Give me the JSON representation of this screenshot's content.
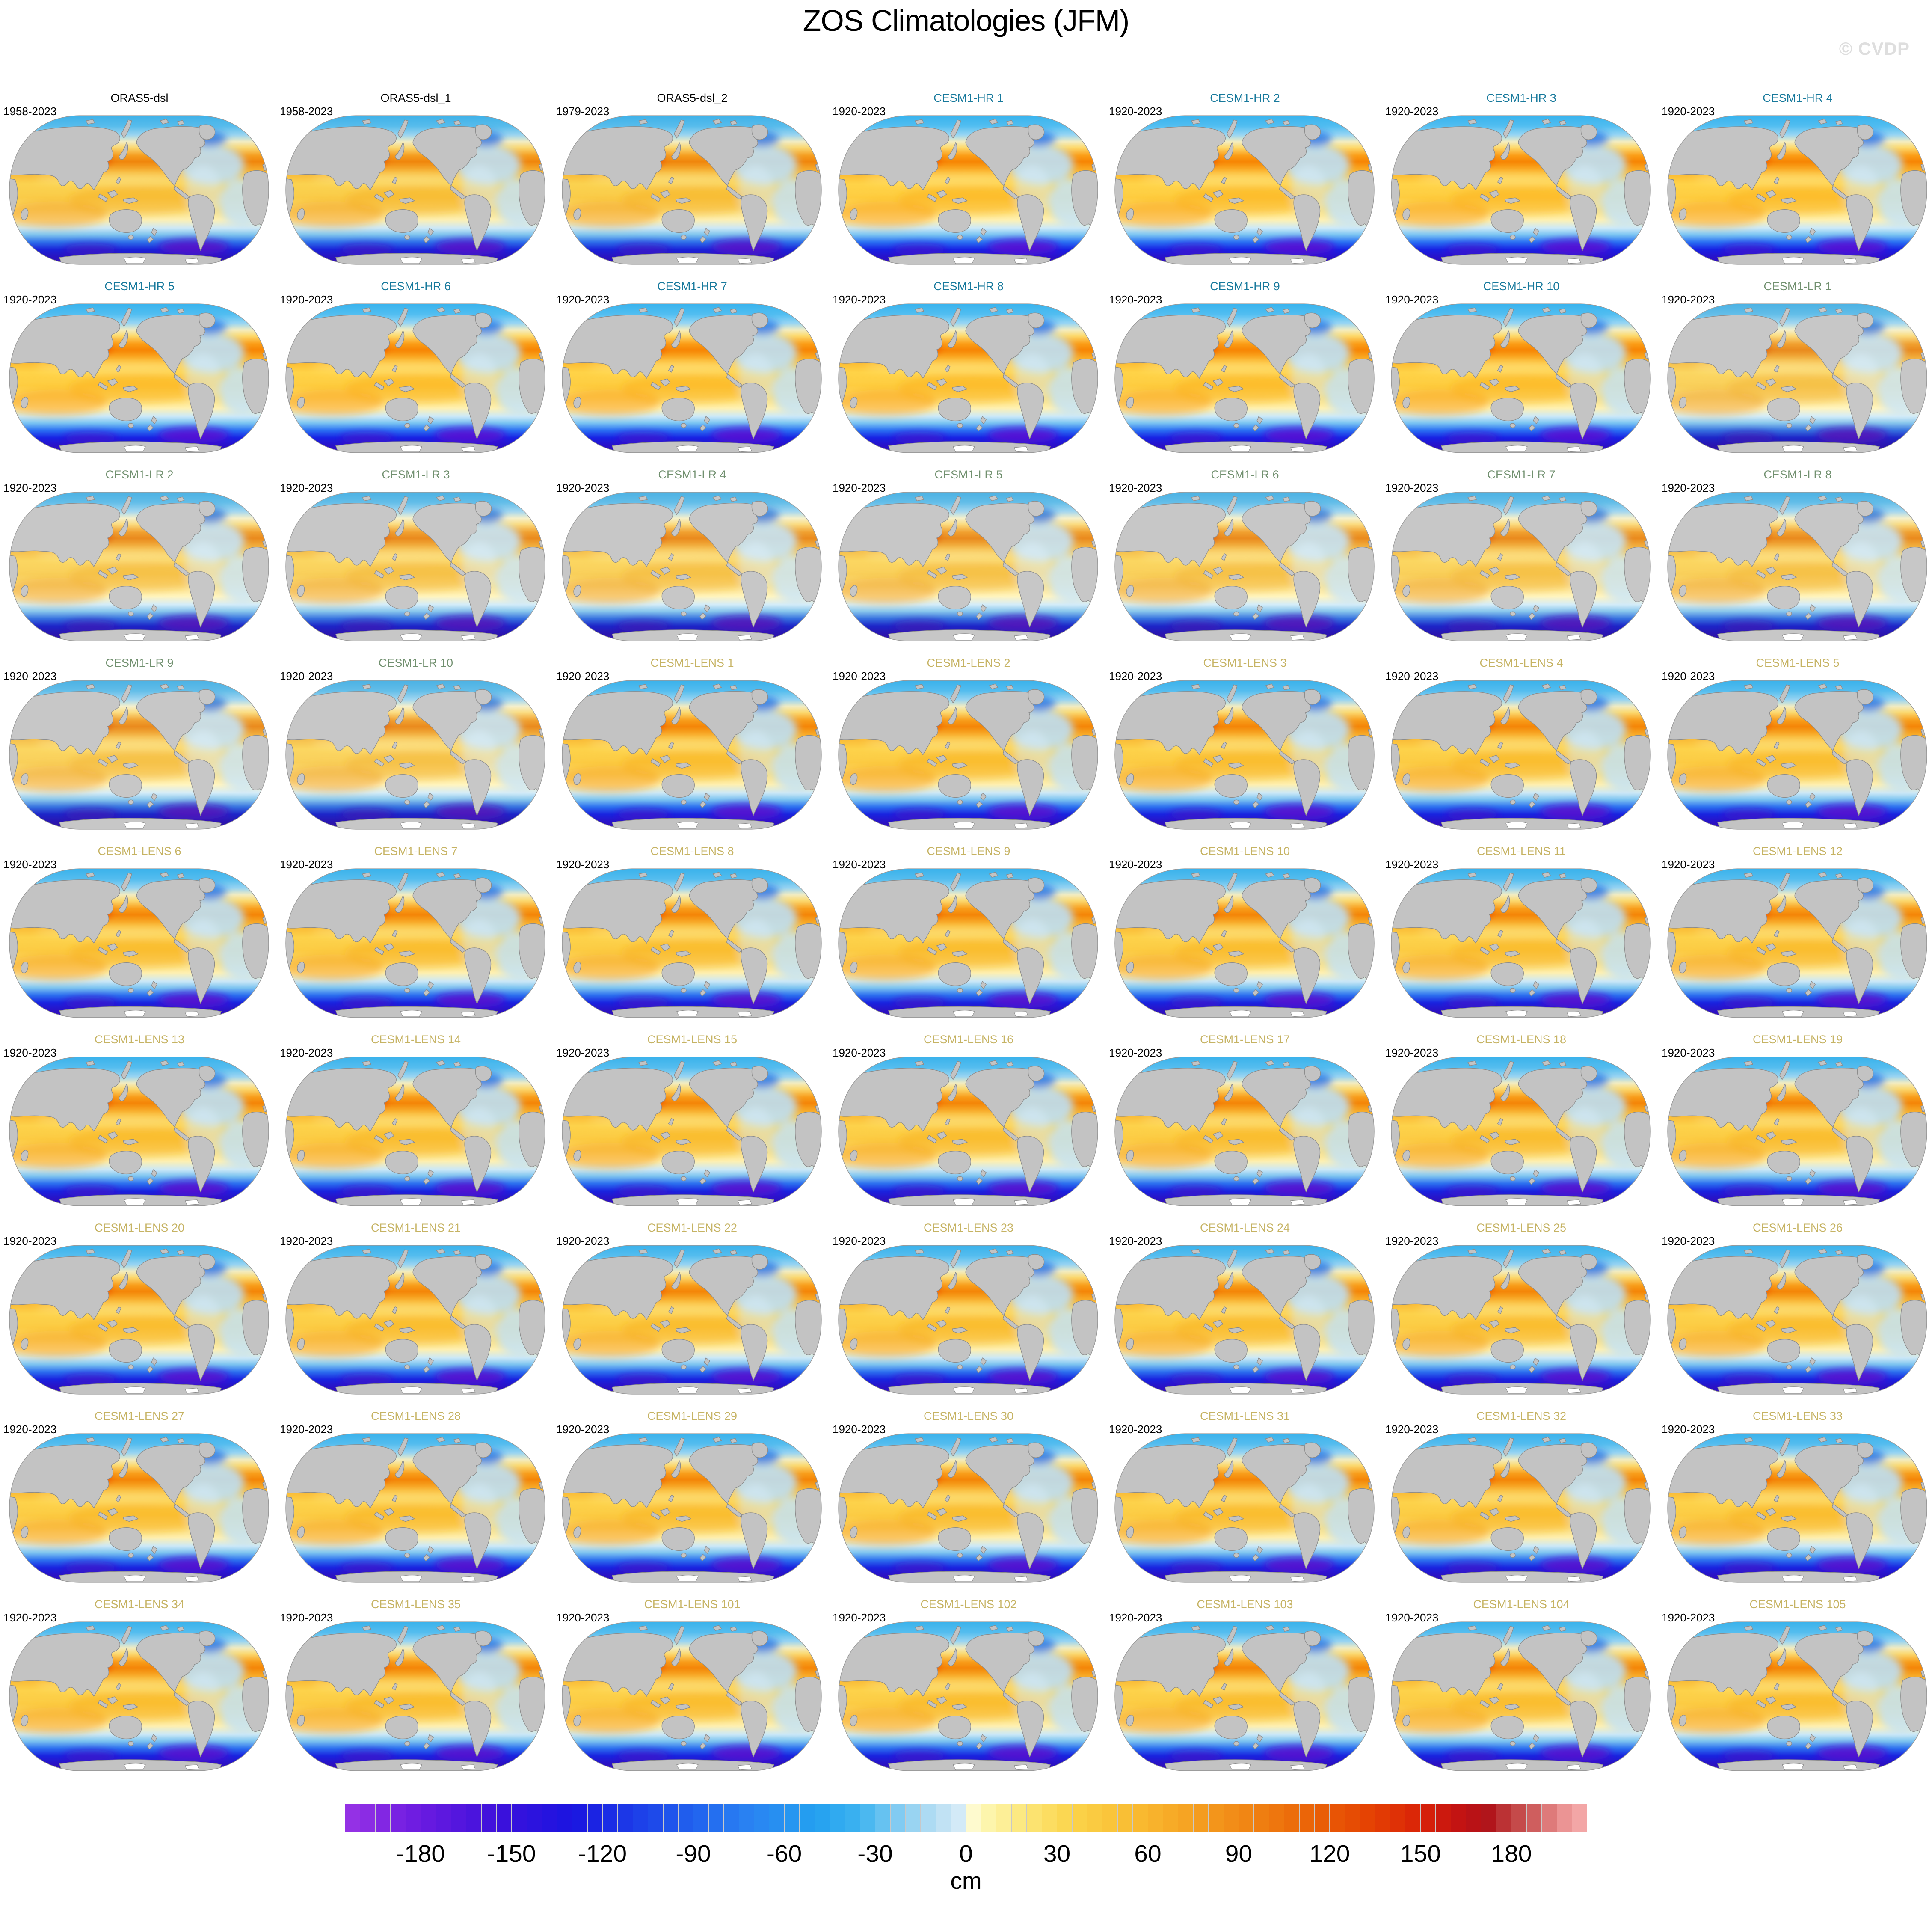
{
  "title": "ZOS Climatologies (JFM)",
  "watermark": "© CVDP",
  "group_title_colors": {
    "obs": "#000000",
    "hr": "#17799C",
    "lr": "#71906F",
    "lens": "#C6B363"
  },
  "map_colors": {
    "land": "#C3C3C3",
    "coast": "#8C8C8C",
    "outline": "#999999"
  },
  "chart_data": {
    "type": "heatmap",
    "title": "ZOS Climatologies (JFM)",
    "variable": "ZOS",
    "season": "JFM",
    "unit": "cm",
    "grid": {
      "rows": 9,
      "cols": 7
    },
    "projection": "global ellipse, Pacific-centered",
    "colorbar": {
      "unit": "cm",
      "range": [
        -205,
        205
      ],
      "ticks": [
        -180,
        -150,
        -120,
        -90,
        -60,
        -30,
        0,
        30,
        60,
        90,
        120,
        150,
        180
      ],
      "tick_labels": [
        "-180",
        "-150",
        "-120",
        "-90",
        "-60",
        "-30",
        "0",
        "30",
        "60",
        "90",
        "120",
        "150",
        "180"
      ],
      "cells": 82,
      "stops": [
        [
          -205,
          "#9933E6"
        ],
        [
          -180,
          "#6A1BE0"
        ],
        [
          -155,
          "#3D11DC"
        ],
        [
          -130,
          "#1A14E0"
        ],
        [
          -110,
          "#1C3CE8"
        ],
        [
          -90,
          "#2162EE"
        ],
        [
          -70,
          "#2A85F2"
        ],
        [
          -50,
          "#23A0F0"
        ],
        [
          -35,
          "#3DB3F0"
        ],
        [
          -20,
          "#8FD0F2"
        ],
        [
          -8,
          "#BFE1F4"
        ],
        [
          -1,
          "#D9EDF8"
        ],
        [
          1,
          "#FEFBD8"
        ],
        [
          8,
          "#FDF4A9"
        ],
        [
          20,
          "#FCE678"
        ],
        [
          35,
          "#FBD44A"
        ],
        [
          55,
          "#F9BC32"
        ],
        [
          75,
          "#F5A021"
        ],
        [
          95,
          "#F08212"
        ],
        [
          115,
          "#EA6106"
        ],
        [
          135,
          "#E43F03"
        ],
        [
          150,
          "#D92208"
        ],
        [
          162,
          "#C41312"
        ],
        [
          172,
          "#B01219"
        ],
        [
          180,
          "#C04040"
        ],
        [
          188,
          "#D06060"
        ],
        [
          196,
          "#E88F8F"
        ],
        [
          205,
          "#F7AFAF"
        ]
      ]
    },
    "panels": [
      {
        "label": "ORAS5-dsl",
        "years": "1958-2023",
        "group": "obs"
      },
      {
        "label": "ORAS5-dsl_1",
        "years": "1958-2023",
        "group": "obs"
      },
      {
        "label": "ORAS5-dsl_2",
        "years": "1979-2023",
        "group": "obs"
      },
      {
        "label": "CESM1-HR 1",
        "years": "1920-2023",
        "group": "hr"
      },
      {
        "label": "CESM1-HR 2",
        "years": "1920-2023",
        "group": "hr"
      },
      {
        "label": "CESM1-HR 3",
        "years": "1920-2023",
        "group": "hr"
      },
      {
        "label": "CESM1-HR 4",
        "years": "1920-2023",
        "group": "hr"
      },
      {
        "label": "CESM1-HR 5",
        "years": "1920-2023",
        "group": "hr"
      },
      {
        "label": "CESM1-HR 6",
        "years": "1920-2023",
        "group": "hr"
      },
      {
        "label": "CESM1-HR 7",
        "years": "1920-2023",
        "group": "hr"
      },
      {
        "label": "CESM1-HR 8",
        "years": "1920-2023",
        "group": "hr"
      },
      {
        "label": "CESM1-HR 9",
        "years": "1920-2023",
        "group": "hr"
      },
      {
        "label": "CESM1-HR 10",
        "years": "1920-2023",
        "group": "hr"
      },
      {
        "label": "CESM1-LR 1",
        "years": "1920-2023",
        "group": "lr"
      },
      {
        "label": "CESM1-LR 2",
        "years": "1920-2023",
        "group": "lr"
      },
      {
        "label": "CESM1-LR 3",
        "years": "1920-2023",
        "group": "lr"
      },
      {
        "label": "CESM1-LR 4",
        "years": "1920-2023",
        "group": "lr"
      },
      {
        "label": "CESM1-LR 5",
        "years": "1920-2023",
        "group": "lr"
      },
      {
        "label": "CESM1-LR 6",
        "years": "1920-2023",
        "group": "lr"
      },
      {
        "label": "CESM1-LR 7",
        "years": "1920-2023",
        "group": "lr"
      },
      {
        "label": "CESM1-LR 8",
        "years": "1920-2023",
        "group": "lr"
      },
      {
        "label": "CESM1-LR 9",
        "years": "1920-2023",
        "group": "lr"
      },
      {
        "label": "CESM1-LR 10",
        "years": "1920-2023",
        "group": "lr"
      },
      {
        "label": "CESM1-LENS 1",
        "years": "1920-2023",
        "group": "lens"
      },
      {
        "label": "CESM1-LENS 2",
        "years": "1920-2023",
        "group": "lens"
      },
      {
        "label": "CESM1-LENS 3",
        "years": "1920-2023",
        "group": "lens"
      },
      {
        "label": "CESM1-LENS 4",
        "years": "1920-2023",
        "group": "lens"
      },
      {
        "label": "CESM1-LENS 5",
        "years": "1920-2023",
        "group": "lens"
      },
      {
        "label": "CESM1-LENS 6",
        "years": "1920-2023",
        "group": "lens"
      },
      {
        "label": "CESM1-LENS 7",
        "years": "1920-2023",
        "group": "lens"
      },
      {
        "label": "CESM1-LENS 8",
        "years": "1920-2023",
        "group": "lens"
      },
      {
        "label": "CESM1-LENS 9",
        "years": "1920-2023",
        "group": "lens"
      },
      {
        "label": "CESM1-LENS 10",
        "years": "1920-2023",
        "group": "lens"
      },
      {
        "label": "CESM1-LENS 11",
        "years": "1920-2023",
        "group": "lens"
      },
      {
        "label": "CESM1-LENS 12",
        "years": "1920-2023",
        "group": "lens"
      },
      {
        "label": "CESM1-LENS 13",
        "years": "1920-2023",
        "group": "lens"
      },
      {
        "label": "CESM1-LENS 14",
        "years": "1920-2023",
        "group": "lens"
      },
      {
        "label": "CESM1-LENS 15",
        "years": "1920-2023",
        "group": "lens"
      },
      {
        "label": "CESM1-LENS 16",
        "years": "1920-2023",
        "group": "lens"
      },
      {
        "label": "CESM1-LENS 17",
        "years": "1920-2023",
        "group": "lens"
      },
      {
        "label": "CESM1-LENS 18",
        "years": "1920-2023",
        "group": "lens"
      },
      {
        "label": "CESM1-LENS 19",
        "years": "1920-2023",
        "group": "lens"
      },
      {
        "label": "CESM1-LENS 20",
        "years": "1920-2023",
        "group": "lens"
      },
      {
        "label": "CESM1-LENS 21",
        "years": "1920-2023",
        "group": "lens"
      },
      {
        "label": "CESM1-LENS 22",
        "years": "1920-2023",
        "group": "lens"
      },
      {
        "label": "CESM1-LENS 23",
        "years": "1920-2023",
        "group": "lens"
      },
      {
        "label": "CESM1-LENS 24",
        "years": "1920-2023",
        "group": "lens"
      },
      {
        "label": "CESM1-LENS 25",
        "years": "1920-2023",
        "group": "lens"
      },
      {
        "label": "CESM1-LENS 26",
        "years": "1920-2023",
        "group": "lens"
      },
      {
        "label": "CESM1-LENS 27",
        "years": "1920-2023",
        "group": "lens"
      },
      {
        "label": "CESM1-LENS 28",
        "years": "1920-2023",
        "group": "lens"
      },
      {
        "label": "CESM1-LENS 29",
        "years": "1920-2023",
        "group": "lens"
      },
      {
        "label": "CESM1-LENS 30",
        "years": "1920-2023",
        "group": "lens"
      },
      {
        "label": "CESM1-LENS 31",
        "years": "1920-2023",
        "group": "lens"
      },
      {
        "label": "CESM1-LENS 32",
        "years": "1920-2023",
        "group": "lens"
      },
      {
        "label": "CESM1-LENS 33",
        "years": "1920-2023",
        "group": "lens"
      },
      {
        "label": "CESM1-LENS 34",
        "years": "1920-2023",
        "group": "lens"
      },
      {
        "label": "CESM1-LENS 35",
        "years": "1920-2023",
        "group": "lens"
      },
      {
        "label": "CESM1-LENS 101",
        "years": "1920-2023",
        "group": "lens"
      },
      {
        "label": "CESM1-LENS 102",
        "years": "1920-2023",
        "group": "lens"
      },
      {
        "label": "CESM1-LENS 103",
        "years": "1920-2023",
        "group": "lens"
      },
      {
        "label": "CESM1-LENS 104",
        "years": "1920-2023",
        "group": "lens"
      },
      {
        "label": "CESM1-LENS 105",
        "years": "1920-2023",
        "group": "lens"
      }
    ],
    "layout": {
      "panel_left0": 6,
      "panel_top0": 214,
      "col_pitch": 646,
      "row_pitch": 440
    }
  }
}
